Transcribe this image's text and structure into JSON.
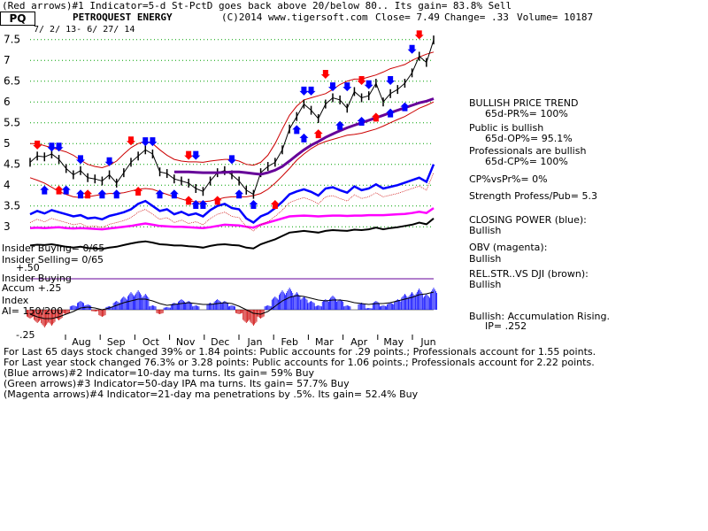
{
  "header": {
    "line1": "(Red arrows)#1 Indicator=5-d St-PctD goes back above 20/below 80.. Its gain= 83.8% Sell",
    "ticker": "PQ",
    "name": "PETROQUEST ENERGY",
    "copyright": "(C)2014 www.tigersoft.com",
    "close": "Close=   7.49",
    "change": "Change= .33",
    "volume": "Volume= 10187",
    "date_range": "7/ 2/ 13- 6/ 27/ 14"
  },
  "left_labels": {
    "insider_buying": "Insider Buying= 0/65",
    "insider_selling": "Insider Selling= 0/65",
    "insider_buying_title": "Insider Buying",
    "accum_label": "Accum  +.25",
    "index_label": "Index",
    "ai_label": "AI= 150/200",
    "minus25": "-.25",
    "plus50": "+.50"
  },
  "right_panel": {
    "trend_title": "BULLISH PRICE TREND",
    "trend_value": "65d-PR%= 100%",
    "public_title": "Public is bullish",
    "public_value": "65d-OP%= 95.1%",
    "pros_title": "Professionals are bullish",
    "pros_value": "65d-CP%= 100%",
    "cpvspr": "CP%vsPr%=  0%",
    "strength": "Strength Profess/Pub= 5.3",
    "cp_title": "CLOSING POWER (blue):",
    "cp_value": "Bullish",
    "obv_title": "OBV (magenta):",
    "obv_value": "Bullish",
    "rel_title": "REL.STR..VS DJI (brown):",
    "rel_value": "Bullish",
    "accum_title": "Bullish: Accumulation Rising.",
    "accum_value": "IP=  .252"
  },
  "bottom_text": {
    "line1": "For Last 65 days stock changed  39% or  1.84 points:  Public accounts for  .29 points.;  Professionals account for  1.55 points.",
    "line2": "For Last year stock changed  76.3% or  3.28 points:  Public accounts for  1.06 points.;  Professionals account for  2.22 points.",
    "line3": "(Blue arrows)#2 Indicator=10-day ma turns. Its gain= 59% Buy",
    "line4": "(Green arrows)#3 Indicator=50-day IPA ma turns. Its gain= 57.7% Buy",
    "line5": "(Magenta arrows)#4 Indicator=21-day ma penetrations by .5%. Its gain= 52.4% Buy"
  },
  "colors": {
    "price": "#000000",
    "band": "#cc0000",
    "ma": "#660099",
    "closing_power": "#0000ff",
    "obv": "#ff00ff",
    "rel_strength": "#8b4513",
    "accum_pos": "#0000ff",
    "accum_neg": "#cc0000",
    "grid": "#00a000",
    "sell_arrow": "#ff0000",
    "buy_arrow": "#0000ff"
  },
  "chart_data": {
    "type": "line",
    "ylim": [
      2.75,
      7.6
    ],
    "yticks": [
      3,
      3.5,
      4,
      4.5,
      5,
      5.5,
      6,
      6.5,
      7,
      7.5
    ],
    "ytick_labels": [
      "3",
      "3.5",
      "4",
      "4.5",
      "5",
      "5.5",
      "6",
      "6.5",
      "7",
      "7.5"
    ],
    "x_month_labels": [
      "Aug",
      "Sep",
      "Oct",
      "Nov",
      "Dec",
      "Jan",
      "Feb",
      "Mar",
      "Apr",
      "May",
      "Jun"
    ],
    "price_close": [
      4.55,
      4.7,
      4.68,
      4.75,
      4.62,
      4.4,
      4.25,
      4.35,
      4.18,
      4.15,
      4.1,
      4.25,
      4.05,
      4.3,
      4.55,
      4.7,
      4.85,
      4.75,
      4.32,
      4.28,
      4.15,
      4.1,
      4.05,
      3.92,
      3.85,
      4.1,
      4.3,
      4.35,
      4.25,
      4.1,
      3.88,
      3.78,
      4.3,
      4.45,
      4.55,
      4.85,
      5.35,
      5.65,
      5.95,
      5.8,
      5.6,
      5.95,
      6.1,
      6.05,
      5.85,
      6.25,
      6.1,
      6.15,
      6.45,
      6.0,
      6.2,
      6.3,
      6.45,
      6.7,
      7.1,
      6.95,
      7.49
    ],
    "upper_band": [
      5.0,
      5.0,
      4.95,
      4.9,
      4.85,
      4.8,
      4.72,
      4.6,
      4.5,
      4.45,
      4.42,
      4.48,
      4.58,
      4.75,
      4.9,
      5.0,
      5.05,
      5.0,
      4.85,
      4.72,
      4.62,
      4.58,
      4.56,
      4.56,
      4.55,
      4.58,
      4.6,
      4.62,
      4.62,
      4.58,
      4.5,
      4.48,
      4.55,
      4.72,
      5.0,
      5.35,
      5.68,
      5.9,
      6.05,
      6.1,
      6.15,
      6.2,
      6.3,
      6.42,
      6.5,
      6.55,
      6.55,
      6.6,
      6.65,
      6.72,
      6.8,
      6.85,
      6.9,
      7.0,
      7.08,
      7.15,
      7.2
    ],
    "lower_band": [
      4.18,
      4.12,
      4.05,
      3.95,
      3.85,
      3.78,
      3.72,
      3.7,
      3.72,
      3.75,
      3.78,
      3.8,
      3.8,
      3.82,
      3.86,
      3.9,
      3.92,
      3.9,
      3.84,
      3.78,
      3.72,
      3.67,
      3.62,
      3.6,
      3.6,
      3.62,
      3.66,
      3.7,
      3.72,
      3.72,
      3.72,
      3.75,
      3.8,
      3.9,
      4.05,
      4.22,
      4.4,
      4.6,
      4.75,
      4.88,
      4.98,
      5.05,
      5.1,
      5.15,
      5.2,
      5.22,
      5.25,
      5.3,
      5.35,
      5.42,
      5.5,
      5.58,
      5.65,
      5.75,
      5.85,
      5.92,
      6.0
    ],
    "ma_purple_start_index": 20,
    "ma_purple": [
      4.32,
      4.32,
      4.32,
      4.31,
      4.3,
      4.3,
      4.3,
      4.31,
      4.32,
      4.32,
      4.3,
      4.28,
      4.26,
      4.3,
      4.36,
      4.45,
      4.58,
      4.72,
      4.85,
      4.96,
      5.05,
      5.15,
      5.23,
      5.31,
      5.38,
      5.44,
      5.5,
      5.56,
      5.62,
      5.68,
      5.74,
      5.8,
      5.86,
      5.92,
      5.98,
      6.02,
      6.08
    ],
    "closing_power": [
      3.3,
      3.38,
      3.32,
      3.4,
      3.35,
      3.3,
      3.25,
      3.28,
      3.2,
      3.22,
      3.18,
      3.26,
      3.3,
      3.35,
      3.42,
      3.55,
      3.62,
      3.5,
      3.38,
      3.42,
      3.3,
      3.36,
      3.28,
      3.32,
      3.25,
      3.4,
      3.5,
      3.55,
      3.45,
      3.42,
      3.2,
      3.1,
      3.25,
      3.32,
      3.45,
      3.6,
      3.78,
      3.85,
      3.9,
      3.84,
      3.75,
      3.92,
      3.95,
      3.88,
      3.82,
      3.97,
      3.88,
      3.92,
      4.02,
      3.92,
      3.96,
      4.0,
      4.06,
      4.12,
      4.18,
      4.08,
      4.5
    ],
    "obv": [
      2.97,
      2.98,
      2.97,
      2.98,
      2.99,
      2.97,
      2.96,
      2.97,
      2.96,
      2.95,
      2.94,
      2.96,
      2.98,
      3.0,
      3.02,
      3.05,
      3.08,
      3.05,
      3.02,
      3.01,
      3.0,
      3.0,
      2.99,
      2.98,
      2.97,
      2.99,
      3.02,
      3.05,
      3.04,
      3.03,
      3.0,
      2.98,
      3.05,
      3.1,
      3.15,
      3.2,
      3.25,
      3.26,
      3.27,
      3.26,
      3.25,
      3.26,
      3.27,
      3.27,
      3.26,
      3.27,
      3.27,
      3.28,
      3.28,
      3.28,
      3.29,
      3.3,
      3.31,
      3.33,
      3.36,
      3.33,
      3.45
    ],
    "rel_strength": [
      2.55,
      2.57,
      2.56,
      2.58,
      2.55,
      2.52,
      2.5,
      2.52,
      2.49,
      2.48,
      2.47,
      2.5,
      2.52,
      2.56,
      2.6,
      2.63,
      2.65,
      2.62,
      2.58,
      2.57,
      2.55,
      2.55,
      2.53,
      2.52,
      2.5,
      2.54,
      2.57,
      2.58,
      2.56,
      2.55,
      2.5,
      2.48,
      2.58,
      2.64,
      2.7,
      2.78,
      2.86,
      2.88,
      2.9,
      2.88,
      2.86,
      2.9,
      2.92,
      2.91,
      2.9,
      2.93,
      2.92,
      2.94,
      2.98,
      2.94,
      2.97,
      2.99,
      3.02,
      3.05,
      3.1,
      3.06,
      3.2
    ],
    "accum_index": [
      -0.1,
      -0.15,
      -0.2,
      -0.18,
      -0.12,
      -0.05,
      0.05,
      0.1,
      0.06,
      -0.02,
      -0.08,
      0.04,
      0.1,
      0.15,
      0.2,
      0.22,
      0.18,
      0.05,
      -0.05,
      0.03,
      0.08,
      0.12,
      0.1,
      0.05,
      0.0,
      0.08,
      0.12,
      0.1,
      0.05,
      -0.05,
      -0.15,
      -0.18,
      -0.1,
      0.05,
      0.15,
      0.22,
      0.25,
      0.2,
      0.15,
      0.1,
      0.05,
      0.12,
      0.16,
      0.12,
      0.05,
      0.0,
      0.08,
      0.02,
      0.1,
      0.05,
      0.08,
      0.12,
      0.18,
      0.2,
      0.24,
      0.18,
      0.25
    ],
    "accum_ma": [
      -0.05,
      -0.08,
      -0.1,
      -0.1,
      -0.08,
      -0.05,
      -0.02,
      0.02,
      0.03,
      0.02,
      0.0,
      0.02,
      0.05,
      0.08,
      0.1,
      0.12,
      0.12,
      0.1,
      0.07,
      0.05,
      0.06,
      0.07,
      0.08,
      0.07,
      0.06,
      0.06,
      0.07,
      0.08,
      0.07,
      0.04,
      0.0,
      -0.04,
      -0.05,
      -0.02,
      0.04,
      0.1,
      0.14,
      0.16,
      0.15,
      0.13,
      0.11,
      0.1,
      0.11,
      0.11,
      0.1,
      0.08,
      0.07,
      0.06,
      0.07,
      0.07,
      0.08,
      0.1,
      0.12,
      0.14,
      0.17,
      0.18,
      0.2
    ],
    "sell_arrows": [
      [
        1,
        4.9
      ],
      [
        14,
        5.0
      ],
      [
        22,
        4.65
      ],
      [
        41,
        6.6
      ],
      [
        46,
        6.45
      ],
      [
        54,
        7.55
      ]
    ],
    "buy_arrows": [
      [
        3,
        4.85
      ],
      [
        4,
        4.85
      ],
      [
        7,
        4.55
      ],
      [
        11,
        4.5
      ],
      [
        16,
        4.98
      ],
      [
        17,
        4.98
      ],
      [
        23,
        4.65
      ],
      [
        28,
        4.55
      ],
      [
        38,
        6.2
      ],
      [
        39,
        6.2
      ],
      [
        42,
        6.3
      ],
      [
        44,
        6.3
      ],
      [
        47,
        6.35
      ],
      [
        50,
        6.45
      ],
      [
        53,
        7.2
      ]
    ],
    "up_arrows": [
      [
        2,
        3.95
      ],
      [
        4,
        3.95
      ],
      [
        5,
        3.95
      ],
      [
        7,
        3.85
      ],
      [
        8,
        3.85
      ],
      [
        10,
        3.85
      ],
      [
        12,
        3.85
      ],
      [
        15,
        3.92
      ],
      [
        18,
        3.85
      ],
      [
        20,
        3.85
      ],
      [
        22,
        3.7
      ],
      [
        23,
        3.6
      ],
      [
        24,
        3.6
      ],
      [
        26,
        3.7
      ],
      [
        29,
        3.85
      ],
      [
        31,
        3.6
      ],
      [
        34,
        3.6
      ],
      [
        37,
        5.4
      ],
      [
        38,
        5.2
      ],
      [
        40,
        5.3
      ],
      [
        43,
        5.5
      ],
      [
        46,
        5.6
      ],
      [
        48,
        5.7
      ],
      [
        50,
        5.8
      ],
      [
        52,
        5.95
      ]
    ]
  }
}
